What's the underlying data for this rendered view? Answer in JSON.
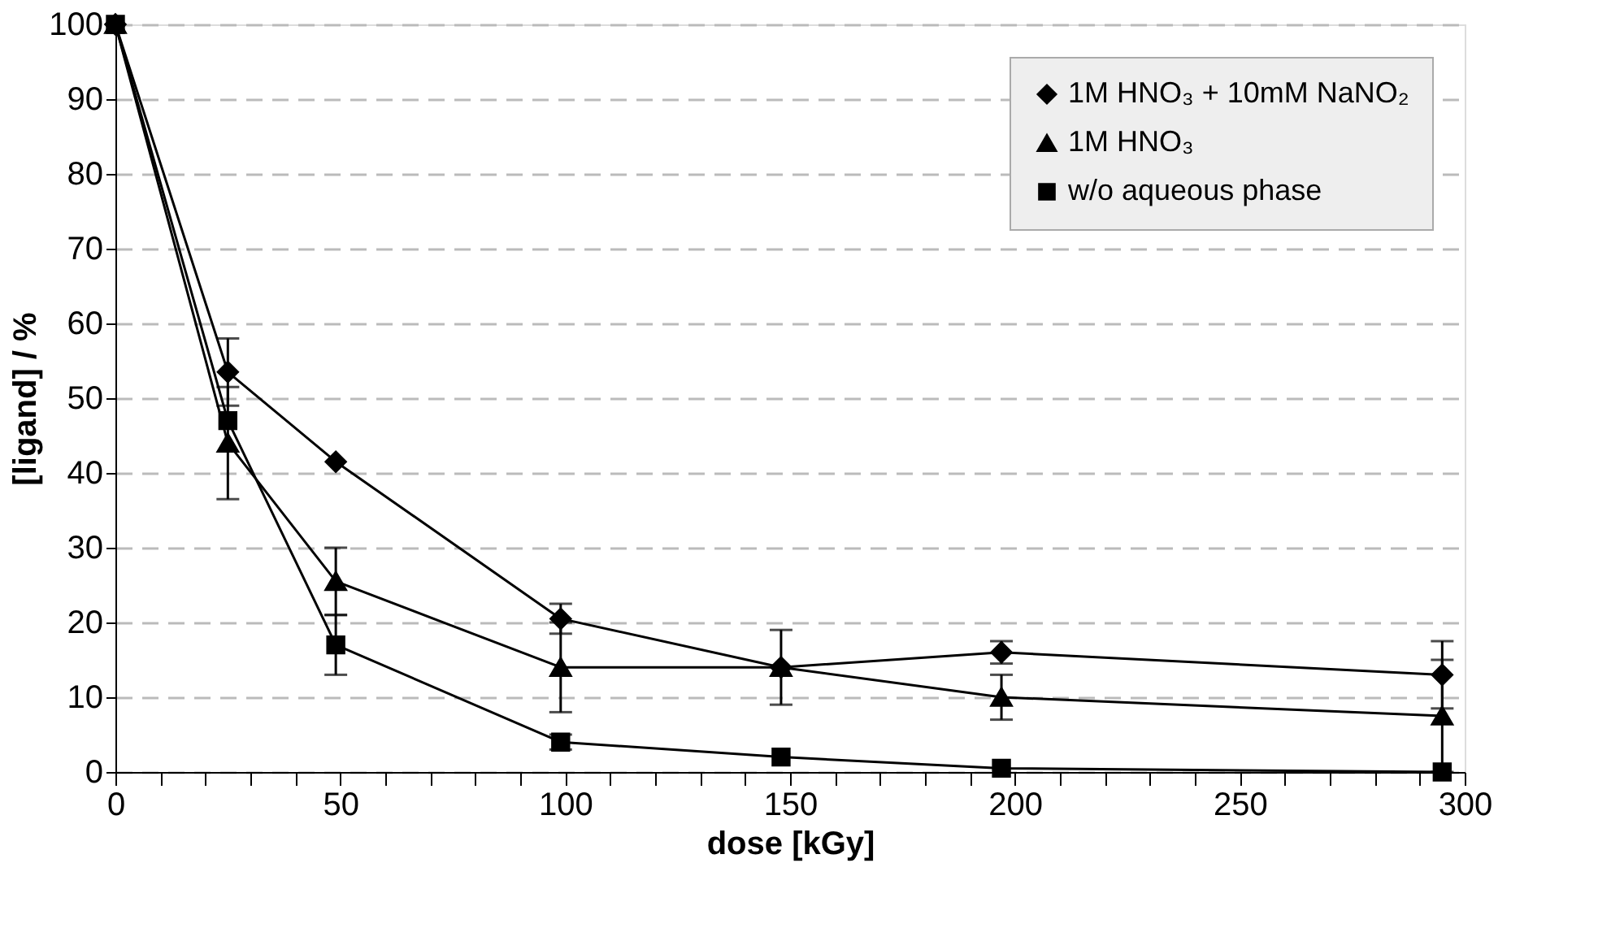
{
  "chart_data": {
    "type": "line",
    "xlabel": "dose [kGy]",
    "ylabel": "[ligand] / %",
    "x": [
      0,
      25,
      49,
      99,
      148,
      197,
      295
    ],
    "series": [
      {
        "name": "1M HNO₃ + 10mM NaNO₂",
        "color": "#000000",
        "marker": "diamond",
        "values": [
          100,
          53.5,
          41.5,
          20.5,
          14,
          16,
          13
        ],
        "errors": [
          null,
          4.5,
          null,
          2,
          null,
          1.5,
          4.5
        ]
      },
      {
        "name": "1M HNO₃",
        "color": "#000000",
        "marker": "triangle",
        "values": [
          100,
          44,
          25.5,
          14,
          14,
          10,
          7.5
        ],
        "errors": [
          null,
          7.5,
          4.5,
          6,
          5,
          3,
          7.5
        ]
      },
      {
        "name": "w/o aqueous phase",
        "color": "#000000",
        "marker": "square",
        "values": [
          100,
          47,
          17,
          4,
          2,
          0.5,
          0
        ],
        "errors": [
          null,
          null,
          4,
          1,
          null,
          null,
          null
        ]
      }
    ],
    "xlim": [
      0,
      300
    ],
    "ylim": [
      0,
      100
    ],
    "xticks": [
      0,
      {
        "value": 10,
        "label": null
      },
      {
        "value": 20,
        "label": null
      },
      {
        "value": 30,
        "label": null
      },
      {
        "value": 40,
        "label": null
      },
      50,
      {
        "value": 60,
        "label": null
      },
      {
        "value": 70,
        "label": null
      },
      {
        "value": 80,
        "label": null
      },
      {
        "value": 90,
        "label": null
      },
      100,
      {
        "value": 110,
        "label": null
      },
      {
        "value": 120,
        "label": null
      },
      {
        "value": 130,
        "label": null
      },
      {
        "value": 140,
        "label": null
      },
      150,
      {
        "value": 160,
        "label": null
      },
      {
        "value": 170,
        "label": null
      },
      {
        "value": 180,
        "label": null
      },
      {
        "value": 190,
        "label": null
      },
      200,
      {
        "value": 210,
        "label": null
      },
      {
        "value": 220,
        "label": null
      },
      {
        "value": 230,
        "label": null
      },
      {
        "value": 240,
        "label": null
      },
      250,
      {
        "value": 260,
        "label": null
      },
      {
        "value": 270,
        "label": null
      },
      {
        "value": 280,
        "label": null
      },
      {
        "value": 290,
        "label": null
      },
      300
    ],
    "yticks": [
      0,
      10,
      20,
      30,
      40,
      50,
      60,
      70,
      80,
      90,
      100
    ],
    "grid": "y",
    "legend": "top right",
    "line_style": "solid"
  }
}
